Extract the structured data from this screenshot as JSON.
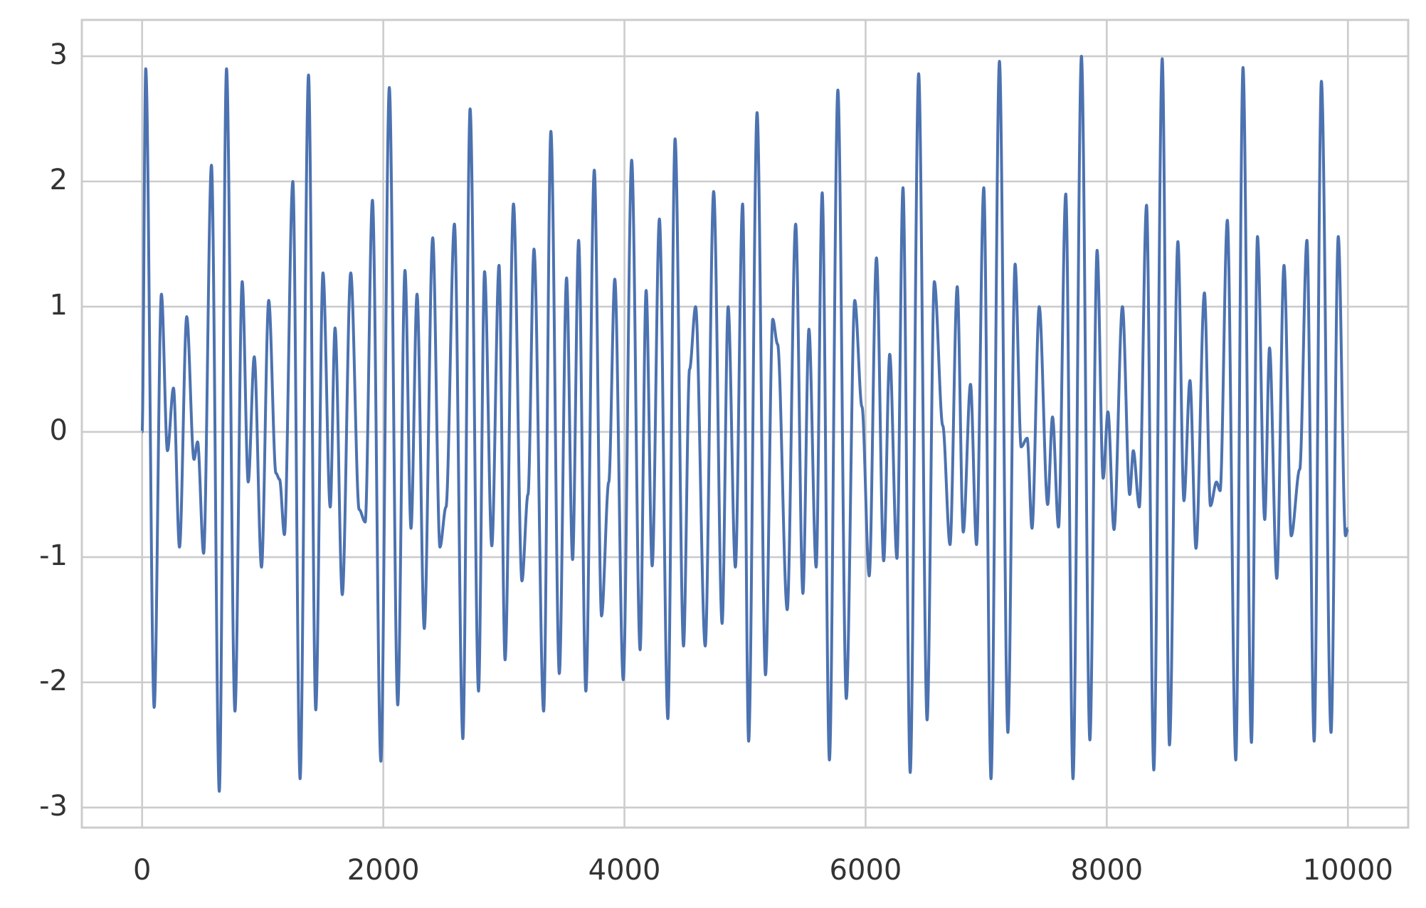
{
  "chart_data": {
    "type": "line",
    "x": [
      0,
      30,
      100,
      160,
      210,
      260,
      310,
      370,
      430,
      460,
      510,
      575,
      640,
      700,
      770,
      830,
      880,
      930,
      990,
      1050,
      1110,
      1140,
      1180,
      1250,
      1310,
      1380,
      1440,
      1500,
      1560,
      1600,
      1660,
      1730,
      1800,
      1850,
      1910,
      1980,
      2050,
      2120,
      2180,
      2230,
      2280,
      2340,
      2410,
      2470,
      2520,
      2590,
      2660,
      2720,
      2790,
      2840,
      2900,
      2960,
      3010,
      3080,
      3150,
      3200,
      3250,
      3330,
      3390,
      3460,
      3520,
      3570,
      3620,
      3680,
      3750,
      3810,
      3870,
      3920,
      3990,
      4060,
      4130,
      4180,
      4230,
      4290,
      4360,
      4420,
      4490,
      4540,
      4590,
      4670,
      4740,
      4810,
      4860,
      4920,
      4980,
      5030,
      5100,
      5170,
      5230,
      5270,
      5350,
      5420,
      5480,
      5530,
      5590,
      5640,
      5700,
      5770,
      5840,
      5910,
      5970,
      6030,
      6090,
      6150,
      6200,
      6260,
      6310,
      6370,
      6440,
      6510,
      6570,
      6640,
      6700,
      6760,
      6810,
      6870,
      6920,
      6980,
      7040,
      7110,
      7180,
      7240,
      7290,
      7340,
      7380,
      7440,
      7510,
      7550,
      7600,
      7660,
      7720,
      7790,
      7860,
      7920,
      7970,
      8010,
      8060,
      8130,
      8190,
      8220,
      8270,
      8330,
      8390,
      8460,
      8520,
      8590,
      8640,
      8690,
      8740,
      8810,
      8860,
      8910,
      8940,
      9000,
      9070,
      9130,
      9200,
      9250,
      9310,
      9350,
      9410,
      9470,
      9530,
      9600,
      9660,
      9720,
      9780,
      9860,
      9920,
      9980,
      10000
    ],
    "series": [
      {
        "color": "#4c72b0",
        "values": [
          0,
          2.9,
          -2.2,
          1.1,
          -0.15,
          0.35,
          -0.92,
          0.92,
          -0.22,
          -0.08,
          -0.97,
          2.13,
          -2.87,
          2.9,
          -2.23,
          1.2,
          -0.4,
          0.6,
          -1.08,
          1.05,
          -0.33,
          -0.38,
          -0.82,
          2.0,
          -2.77,
          2.85,
          -2.22,
          1.27,
          -0.6,
          0.83,
          -1.3,
          1.27,
          -0.62,
          -0.72,
          1.85,
          -2.63,
          2.75,
          -2.18,
          1.29,
          -0.77,
          1.1,
          -1.57,
          1.55,
          -0.92,
          -0.6,
          1.66,
          -2.45,
          2.58,
          -2.07,
          1.28,
          -0.91,
          1.33,
          -1.82,
          1.82,
          -1.19,
          -0.5,
          1.46,
          -2.23,
          2.4,
          -1.93,
          1.23,
          -1.02,
          1.53,
          -2.07,
          2.09,
          -1.47,
          -0.4,
          1.22,
          -1.98,
          2.17,
          -1.74,
          1.13,
          -1.07,
          1.7,
          -2.29,
          2.34,
          -1.71,
          0.5,
          1.0,
          -1.71,
          1.92,
          -1.53,
          1.0,
          -1.08,
          1.82,
          -2.47,
          2.55,
          -1.94,
          0.9,
          0.7,
          -1.42,
          1.66,
          -1.29,
          0.82,
          -1.08,
          1.91,
          -2.62,
          2.73,
          -2.13,
          1.05,
          0.2,
          -1.15,
          1.39,
          -1.03,
          0.62,
          -1.01,
          1.95,
          -2.72,
          2.86,
          -2.3,
          1.2,
          0.05,
          -0.9,
          1.16,
          -0.8,
          0.38,
          -0.9,
          1.95,
          -2.77,
          2.96,
          -2.4,
          1.34,
          -0.12,
          -0.05,
          -0.77,
          1.0,
          -0.58,
          0.12,
          -0.76,
          1.9,
          -2.77,
          3.0,
          -2.46,
          1.45,
          -0.37,
          0.16,
          -0.78,
          1.0,
          -0.5,
          -0.15,
          -0.6,
          1.81,
          -2.7,
          2.98,
          -2.5,
          1.52,
          -0.55,
          0.41,
          -0.93,
          1.11,
          -0.59,
          -0.4,
          -0.47,
          1.69,
          -2.62,
          2.91,
          -2.48,
          1.56,
          -0.7,
          0.67,
          -1.17,
          1.33,
          -0.83,
          -0.3,
          1.53,
          -2.47,
          2.8,
          -2.4,
          1.56,
          -0.83,
          -0.77
        ]
      }
    ],
    "xlim": [
      -500,
      10500
    ],
    "xticks": [
      0,
      2000,
      4000,
      6000,
      8000,
      10000
    ],
    "ylim": [
      -3.16,
      3.29
    ],
    "yticks": [
      -3,
      -2,
      -1,
      0,
      1,
      2,
      3
    ],
    "grid": true
  }
}
